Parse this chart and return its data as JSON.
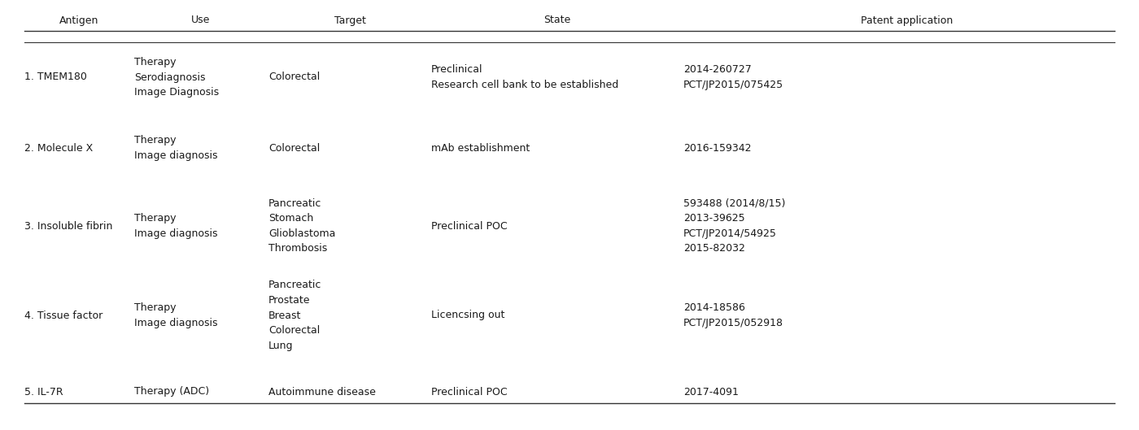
{
  "background_color": "#ffffff",
  "header": [
    "Antigen",
    "Use",
    "Target",
    "State",
    "Patent application"
  ],
  "rows": [
    {
      "antigen": "1. TMEM180",
      "use": "Therapy\nSerodiagnosis\nImage Diagnosis",
      "target": "Colorectal",
      "state": "Preclinical\nResearch cell bank to be established",
      "patent": "2014-260727\nPCT/JP2015/075425"
    },
    {
      "antigen": "2. Molecule X",
      "use": "Therapy\nImage diagnosis",
      "target": "Colorectal",
      "state": "mAb establishment",
      "patent": "2016-159342"
    },
    {
      "antigen": "3. Insoluble fibrin",
      "use": "Therapy\nImage diagnosis",
      "target": "Pancreatic\nStomach\nGlioblastoma\nThrombosis",
      "state": "Preclinical POC",
      "patent": "593488 (2014/8/15)\n2013-39625\nPCT/JP2014/54925\n2015-82032"
    },
    {
      "antigen": "4. Tissue factor",
      "use": "Therapy\nImage diagnosis",
      "target": "Pancreatic\nProstate\nBreast\nColorectal\nLung",
      "state": "Licencsing out",
      "patent": "2014-18586\nPCT/JP2015/052918"
    },
    {
      "antigen": "5. IL-7R",
      "use": "Therapy (ADC)",
      "target": "Autoimmune disease",
      "state": "Preclinical POC",
      "patent": "2017-4091"
    }
  ],
  "font_size": 9.0,
  "text_color": "#1a1a1a",
  "line_color": "#333333",
  "fig_width": 14.0,
  "fig_height": 5.29,
  "dpi": 100
}
